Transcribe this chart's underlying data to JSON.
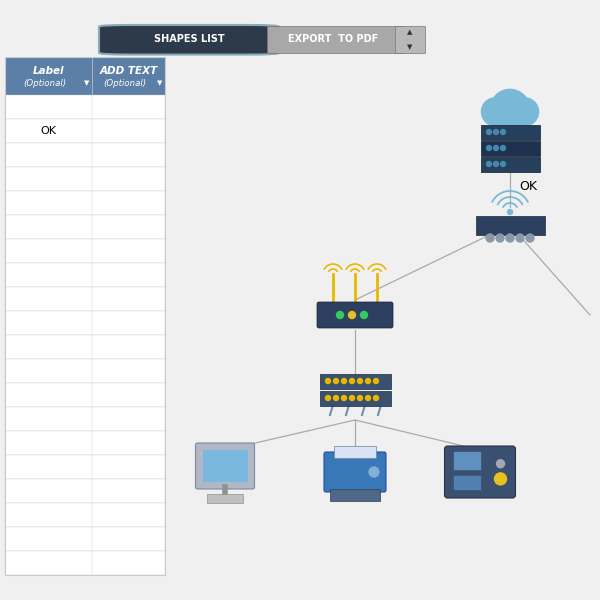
{
  "bg_top_bar": "#1a1a2e",
  "bg_toolbar": "#4f5e70",
  "bg_main": "#f0f0f0",
  "bg_table_header": "#5b7fa6",
  "bg_table_row": "#ffffff",
  "table_border": "#cccccc",
  "table_header_text": "#ffffff",
  "btn_shapes_bg": "#2d3a4a",
  "btn_shapes_text": "#ffffff",
  "btn_export_bg": "#a8a8a8",
  "btn_export_text": "#ffffff",
  "ok_text": "OK",
  "header1": "Label",
  "header1b": "(Optional)",
  "header2": "ADD TEXT",
  "header2b": "(Optional)",
  "num_rows": 20,
  "ok_row": 1,
  "cloud_color": "#7ab8d8",
  "server_color": "#2d4a6a",
  "modem_color": "#2d4060",
  "router_body": "#2d4060",
  "antenna_color": "#e8b800",
  "wifi_color": "#7ab8d8",
  "switch_color": "#3a5070",
  "port_color": "#e8b800",
  "computer_screen": "#5090c0",
  "computer_inner": "#7ab8e0",
  "printer_color": "#3878b8",
  "handheld_color": "#3a5070",
  "line_color": "#aaaaaa",
  "ok_color": "#000000"
}
